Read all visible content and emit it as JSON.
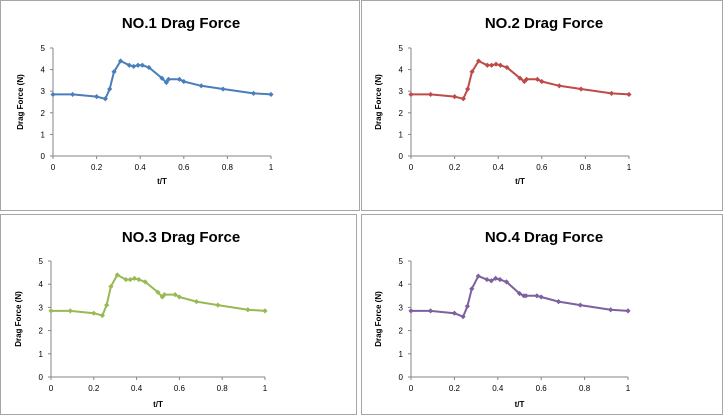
{
  "chart_data": [
    {
      "type": "line",
      "title": "NO.1 Drag Force",
      "xlabel": "t/T",
      "ylabel": "Drag Force (N)",
      "xlim": [
        0,
        1
      ],
      "ylim": [
        0,
        5
      ],
      "x_ticks": [
        "0",
        "0.2",
        "0.4",
        "0.6",
        "0.8",
        "1"
      ],
      "y_ticks": [
        "0",
        "1",
        "2",
        "3",
        "4",
        "5"
      ],
      "grid": false,
      "legend": "none",
      "series": [
        {
          "color": "#4a7ebb",
          "x": [
            0,
            0.09,
            0.2,
            0.24,
            0.26,
            0.28,
            0.31,
            0.35,
            0.37,
            0.39,
            0.41,
            0.44,
            0.5,
            0.52,
            0.53,
            0.58,
            0.6,
            0.68,
            0.78,
            0.92,
            1.0
          ],
          "y": [
            2.85,
            2.85,
            2.75,
            2.65,
            3.1,
            3.9,
            4.4,
            4.2,
            4.15,
            4.2,
            4.2,
            4.1,
            3.6,
            3.4,
            3.55,
            3.55,
            3.45,
            3.25,
            3.1,
            2.9,
            2.85
          ]
        }
      ]
    },
    {
      "type": "line",
      "title": "NO.2 Drag Force",
      "xlabel": "t/T",
      "ylabel": "Drag Force (N)",
      "xlim": [
        0,
        1
      ],
      "ylim": [
        0,
        5
      ],
      "x_ticks": [
        "0",
        "0.2",
        "0.4",
        "0.6",
        "0.8",
        "1"
      ],
      "y_ticks": [
        "0",
        "1",
        "2",
        "3",
        "4",
        "5"
      ],
      "grid": false,
      "legend": "none",
      "series": [
        {
          "color": "#be4b48",
          "x": [
            0,
            0.09,
            0.2,
            0.24,
            0.26,
            0.28,
            0.31,
            0.35,
            0.37,
            0.39,
            0.41,
            0.44,
            0.5,
            0.52,
            0.53,
            0.58,
            0.6,
            0.68,
            0.78,
            0.92,
            1.0
          ],
          "y": [
            2.85,
            2.85,
            2.75,
            2.65,
            3.1,
            3.9,
            4.4,
            4.2,
            4.2,
            4.25,
            4.2,
            4.1,
            3.6,
            3.45,
            3.55,
            3.55,
            3.45,
            3.25,
            3.1,
            2.9,
            2.85
          ]
        }
      ]
    },
    {
      "type": "line",
      "title": "NO.3 Drag Force",
      "xlabel": "t/T",
      "ylabel": "Drag Force (N)",
      "xlim": [
        0,
        1
      ],
      "ylim": [
        0,
        5
      ],
      "x_ticks": [
        "0",
        "0.2",
        "0.4",
        "0.6",
        "0.8",
        "1"
      ],
      "y_ticks": [
        "0",
        "1",
        "2",
        "3",
        "4",
        "5"
      ],
      "grid": false,
      "legend": "none",
      "series": [
        {
          "color": "#98b954",
          "x": [
            0,
            0.09,
            0.2,
            0.24,
            0.26,
            0.28,
            0.31,
            0.35,
            0.37,
            0.39,
            0.41,
            0.44,
            0.5,
            0.52,
            0.53,
            0.58,
            0.6,
            0.68,
            0.78,
            0.92,
            1.0
          ],
          "y": [
            2.85,
            2.85,
            2.75,
            2.65,
            3.1,
            3.9,
            4.4,
            4.2,
            4.2,
            4.25,
            4.2,
            4.1,
            3.65,
            3.45,
            3.55,
            3.55,
            3.45,
            3.25,
            3.1,
            2.9,
            2.85
          ]
        }
      ]
    },
    {
      "type": "line",
      "title": "NO.4 Drag Force",
      "xlabel": "t/T",
      "ylabel": "Drag Force (N)",
      "xlim": [
        0,
        1
      ],
      "ylim": [
        0,
        5
      ],
      "x_ticks": [
        "0",
        "0.2",
        "0.4",
        "0.6",
        "0.8",
        "1"
      ],
      "y_ticks": [
        "0",
        "1",
        "2",
        "3",
        "4",
        "5"
      ],
      "grid": false,
      "legend": "none",
      "series": [
        {
          "color": "#7d60a0",
          "x": [
            0,
            0.09,
            0.2,
            0.24,
            0.26,
            0.28,
            0.31,
            0.35,
            0.37,
            0.39,
            0.41,
            0.44,
            0.5,
            0.52,
            0.53,
            0.58,
            0.6,
            0.68,
            0.78,
            0.92,
            1.0
          ],
          "y": [
            2.85,
            2.85,
            2.75,
            2.6,
            3.05,
            3.8,
            4.35,
            4.2,
            4.15,
            4.25,
            4.2,
            4.1,
            3.6,
            3.5,
            3.5,
            3.5,
            3.45,
            3.25,
            3.1,
            2.9,
            2.85
          ]
        }
      ]
    }
  ]
}
